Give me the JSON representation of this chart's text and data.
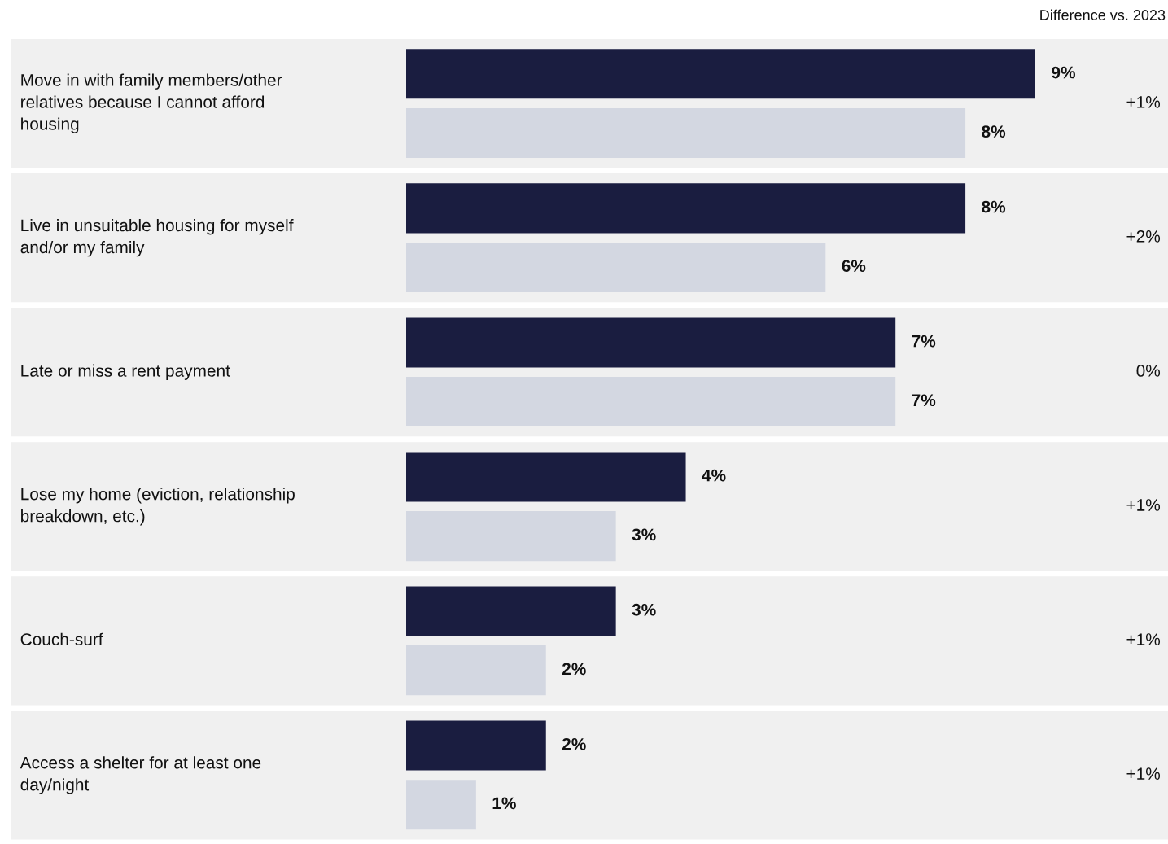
{
  "chart_data": {
    "type": "bar",
    "orientation": "horizontal",
    "categories": [
      "Move in with family members/other\nrelatives because I cannot afford\nhousing",
      "Live in unsuitable housing for myself\nand/or my family",
      "Late or miss a rent payment",
      "Lose my home (eviction, relationship\nbreakdown, etc.)",
      "Couch-surf",
      "Access a shelter for at least one\nday/night"
    ],
    "series": [
      {
        "color": "#1a1d40",
        "values": [
          9,
          8,
          7,
          4,
          3,
          2
        ],
        "value_labels": [
          "9%",
          "8%",
          "7%",
          "4%",
          "3%",
          "2%"
        ]
      },
      {
        "color": "#d3d7e1",
        "values": [
          8,
          6,
          7,
          3,
          2,
          1
        ],
        "value_labels": [
          "8%",
          "6%",
          "7%",
          "3%",
          "2%",
          "1%"
        ]
      }
    ],
    "annotations": [
      "Difference vs. 2023",
      "+1%",
      "+2%",
      "0%",
      "+1%",
      "+1%",
      "+1%"
    ]
  }
}
